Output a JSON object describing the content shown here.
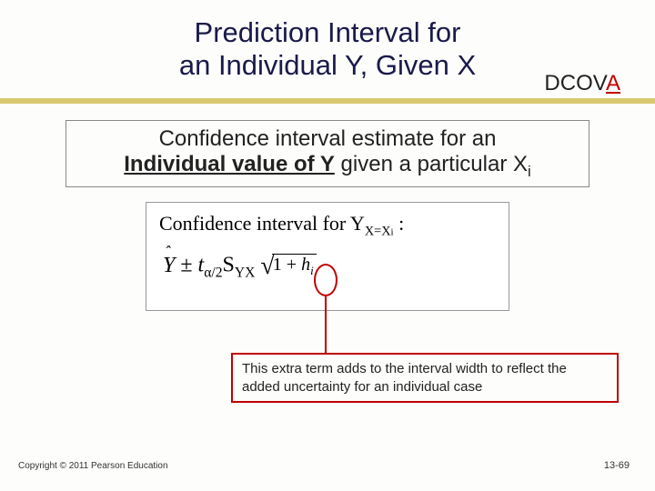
{
  "title": {
    "line1": "Prediction Interval for",
    "line2": "an Individual Y, Given X"
  },
  "dcova": {
    "prefix": "DCOV",
    "red": "A"
  },
  "accent_bar_color": "#d8c870",
  "desc": {
    "pre": "Confidence interval estimate for an",
    "bold": "Individual value of Y",
    "mid": "  given a particular X",
    "sub": "i"
  },
  "formula": {
    "line1_a": "Confidence interval for Y",
    "line1_sub": "X=X",
    "line1_subi": "i",
    "line1_colon": " :",
    "yhat": "Y",
    "pm": " ± ",
    "t": "t",
    "alpha": "α/2",
    "S": "S",
    "yx": "YX",
    "one": "1",
    "plus": " + ",
    "h": "h",
    "i": "i"
  },
  "callout": "This extra term adds to the interval width to reflect the added uncertainty for an individual case",
  "copyright": "Copyright © 2011 Pearson Education",
  "pagenum": "13-69",
  "colors": {
    "title": "#1a1a4a",
    "red": "#c00000",
    "border_gray": "#888888",
    "background": "#fdfdfb"
  }
}
